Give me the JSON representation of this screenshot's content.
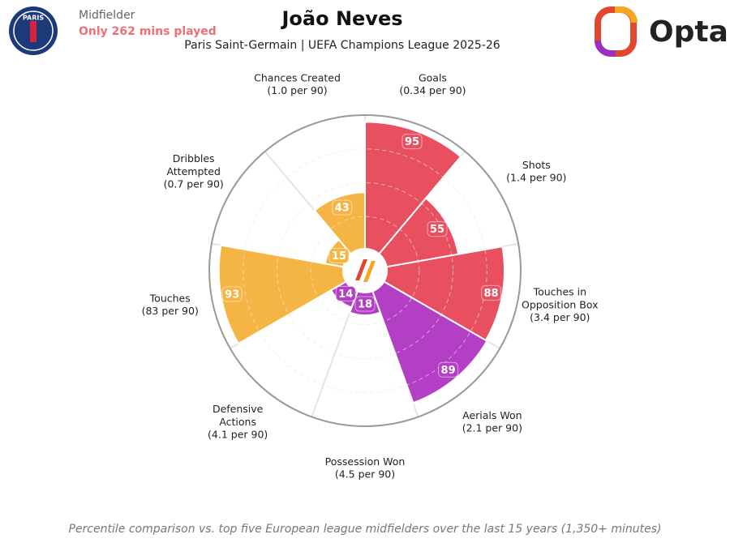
{
  "header": {
    "position": "Midfielder",
    "minutes_note": "Only 262 mins played",
    "title": "João Neves",
    "subtitle": "Paris Saint-Germain | UEFA Champions League 2025-26",
    "brand": "Opta",
    "club_logo_text": "PARIS"
  },
  "chart_data": {
    "type": "pizza",
    "categories": [
      "Goals",
      "Shots",
      "Touches in Opposition Box",
      "Aerials Won",
      "Possession Won",
      "Defensive Actions",
      "Touches",
      "Dribbles Attempted",
      "Chances Created"
    ],
    "subtitles": [
      "(0.34 per 90)",
      "(1.4 per 90)",
      "(3.4 per 90)",
      "(2.1 per 90)",
      "(4.5 per 90)",
      "(4.1 per 90)",
      "(83 per 90)",
      "(0.7 per 90)",
      "(1.0 per 90)"
    ],
    "values": [
      95,
      55,
      88,
      89,
      18,
      14,
      93,
      15,
      43
    ],
    "colors": [
      "#e8505f",
      "#e8505f",
      "#e8505f",
      "#b33fc4",
      "#b33fc4",
      "#b33fc4",
      "#f5b544",
      "#f5b544",
      "#f5b544"
    ],
    "rlim": [
      0,
      100
    ]
  },
  "footnote": "Percentile comparison vs. top five European league midfielders over the last 15 years (1,350+ minutes)"
}
